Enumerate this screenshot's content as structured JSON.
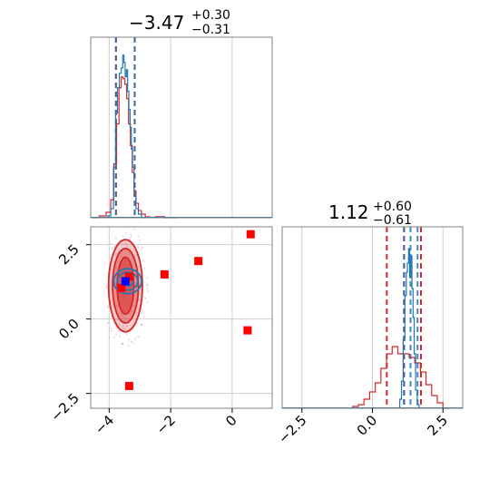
{
  "colors": {
    "red": "#d62728",
    "blue": "#1f77b4",
    "square_red": "#ff0000",
    "square_blue": "#0000ff",
    "grid": "#cfcfcf",
    "frame": "#808080"
  },
  "chart_data": [
    {
      "type": "histogram",
      "panel": "top-left",
      "title": {
        "value": "−3.47",
        "plus": "+0.30",
        "minus": "−0.31"
      },
      "xlim": [
        -4.6,
        1.3
      ],
      "ylim": [
        0,
        1.0
      ],
      "grid": true,
      "quantile_lines": {
        "red": [
          -3.78,
          -3.17
        ],
        "blue": [
          -3.78,
          -3.17
        ]
      },
      "series": [
        {
          "color": "red",
          "x": [
            -4.45,
            -4.2,
            -4.0,
            -3.9,
            -3.8,
            -3.72,
            -3.64,
            -3.58,
            -3.52,
            -3.46,
            -3.4,
            -3.34,
            -3.28,
            -3.22,
            -3.16,
            -3.1,
            -3.0,
            -2.9,
            -2.75,
            -2.6,
            -2.4,
            -2.0
          ],
          "values": [
            0.0,
            0.01,
            0.03,
            0.1,
            0.3,
            0.52,
            0.72,
            0.78,
            0.77,
            0.74,
            0.66,
            0.52,
            0.4,
            0.25,
            0.15,
            0.08,
            0.04,
            0.02,
            0.005,
            0.002,
            0.006,
            0.0
          ]
        },
        {
          "color": "blue",
          "x": [
            -4.0,
            -3.9,
            -3.82,
            -3.76,
            -3.7,
            -3.64,
            -3.58,
            -3.54,
            -3.5,
            -3.46,
            -3.42,
            -3.38,
            -3.34,
            -3.3,
            -3.26,
            -3.22,
            -3.16,
            -3.1,
            -3.0,
            -2.9
          ],
          "values": [
            0.01,
            0.05,
            0.28,
            0.58,
            0.72,
            0.8,
            0.83,
            0.9,
            0.86,
            0.78,
            0.82,
            0.7,
            0.6,
            0.5,
            0.38,
            0.28,
            0.12,
            0.05,
            0.02,
            0.0
          ]
        }
      ]
    },
    {
      "type": "histogram",
      "panel": "bottom-right",
      "title": {
        "value": "1.12",
        "plus": "+0.60",
        "minus": "−0.61"
      },
      "xlim": [
        -3.2,
        3.2
      ],
      "ylim": [
        0,
        1.0
      ],
      "xticks": [
        "−2.5",
        "0.0",
        "2.5"
      ],
      "xtick_values": [
        -2.5,
        0.0,
        2.5
      ],
      "grid": true,
      "quantile_lines": {
        "red": [
          0.51,
          1.12,
          1.72
        ],
        "blue": [
          1.12,
          1.35,
          1.6
        ]
      },
      "series": [
        {
          "color": "red",
          "x": [
            -0.6,
            -0.4,
            -0.2,
            0.0,
            0.2,
            0.4,
            0.6,
            0.8,
            1.0,
            1.2,
            1.4,
            1.6,
            1.8,
            2.0,
            2.2,
            2.4,
            2.6
          ],
          "values": [
            0.01,
            0.02,
            0.05,
            0.09,
            0.14,
            0.22,
            0.3,
            0.34,
            0.3,
            0.3,
            0.28,
            0.25,
            0.2,
            0.13,
            0.07,
            0.03,
            0.0
          ]
        },
        {
          "color": "blue",
          "x": [
            1.0,
            1.06,
            1.12,
            1.18,
            1.22,
            1.26,
            1.3,
            1.34,
            1.38,
            1.42,
            1.46,
            1.5,
            1.56,
            1.62
          ],
          "values": [
            0.05,
            0.15,
            0.38,
            0.62,
            0.75,
            0.8,
            0.88,
            0.72,
            0.84,
            0.66,
            0.5,
            0.3,
            0.1,
            0.02
          ]
        }
      ]
    },
    {
      "type": "scatter",
      "panel": "bottom-left",
      "xlim": [
        -4.6,
        1.3
      ],
      "ylim": [
        -3.0,
        3.1
      ],
      "xticks": [
        "−4",
        "−2",
        "0"
      ],
      "xtick_values": [
        -4,
        -2,
        0
      ],
      "yticks": [
        "−2.5",
        "0.0",
        "2.5"
      ],
      "ytick_values": [
        -2.5,
        0.0,
        2.5
      ],
      "grid": true,
      "contours": [
        {
          "color": "red",
          "cx": -3.47,
          "cy": 1.12,
          "levels": [
            {
              "rx": 0.55,
              "ry": 1.55,
              "fill_opacity": 0.45
            },
            {
              "rx": 0.42,
              "ry": 1.25,
              "fill_opacity": 0.7
            },
            {
              "rx": 0.27,
              "ry": 0.95,
              "fill_opacity": 0.95
            }
          ]
        },
        {
          "color": "blue",
          "cx": -3.4,
          "cy": 1.27,
          "levels": [
            {
              "rx": 0.45,
              "ry": 0.42,
              "fill_opacity": 0.0
            },
            {
              "rx": 0.33,
              "ry": 0.3,
              "fill_opacity": 0.0
            },
            {
              "rx": 0.18,
              "ry": 0.16,
              "fill_opacity": 0.0
            }
          ]
        }
      ],
      "red_squares": [
        {
          "x": -3.6,
          "y": 1.05
        },
        {
          "x": -3.35,
          "y": 1.42
        },
        {
          "x": -3.35,
          "y": -2.25
        },
        {
          "x": -2.2,
          "y": 1.5
        },
        {
          "x": -1.1,
          "y": 1.95
        },
        {
          "x": 0.5,
          "y": -0.38
        },
        {
          "x": 0.6,
          "y": 2.85
        }
      ],
      "blue_squares": [
        {
          "x": -3.47,
          "y": 1.27
        }
      ]
    }
  ]
}
